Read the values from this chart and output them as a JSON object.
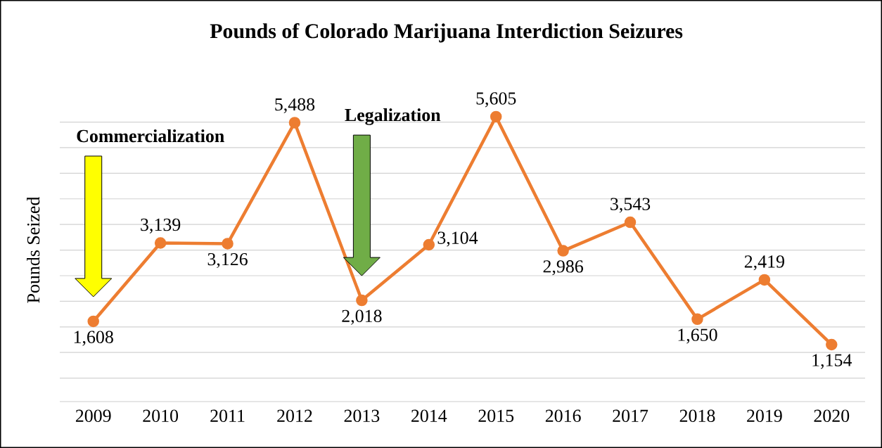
{
  "chart_data": {
    "type": "line",
    "title": "Pounds of Colorado Marijuana Interdiction Seizures",
    "ylabel": "Pounds Seized",
    "categories": [
      "2009",
      "2010",
      "2011",
      "2012",
      "2013",
      "2014",
      "2015",
      "2016",
      "2017",
      "2018",
      "2019",
      "2020"
    ],
    "values": [
      1608,
      3139,
      3126,
      5488,
      2018,
      3104,
      5605,
      2986,
      3543,
      1650,
      2419,
      1154
    ],
    "value_labels": [
      "1,608",
      "3,139",
      "3,126",
      "5,488",
      "2,018",
      "3,104",
      "5,605",
      "2,986",
      "3,543",
      "1,650",
      "2,419",
      "1,154"
    ],
    "color": "#ed7d31",
    "marker": "circle",
    "line_style": "solid",
    "tick_labels": "x",
    "grid": "y",
    "annotations": [
      "Commercialization",
      "Legalization"
    ]
  }
}
